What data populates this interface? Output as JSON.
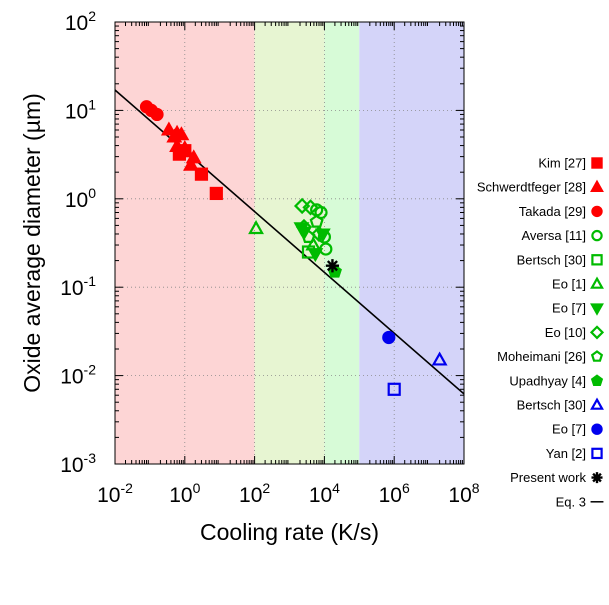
{
  "chart_data": {
    "type": "scatter",
    "xlabel": "Cooling rate (K/s)",
    "ylabel": "Oxide average diameter (µm)",
    "xscale": "log",
    "yscale": "log",
    "xlim": [
      0.01,
      100000000
    ],
    "ylim": [
      0.001,
      100
    ],
    "x_ticks": [
      {
        "base": "10",
        "exp": "-2",
        "value": 0.01
      },
      {
        "base": "10",
        "exp": "0",
        "value": 1
      },
      {
        "base": "10",
        "exp": "2",
        "value": 100
      },
      {
        "base": "10",
        "exp": "4",
        "value": 10000
      },
      {
        "base": "10",
        "exp": "6",
        "value": 1000000
      },
      {
        "base": "10",
        "exp": "8",
        "value": 100000000
      }
    ],
    "y_ticks": [
      {
        "base": "10",
        "exp": "-3",
        "value": 0.001
      },
      {
        "base": "10",
        "exp": "-2",
        "value": 0.01
      },
      {
        "base": "10",
        "exp": "-1",
        "value": 0.1
      },
      {
        "base": "10",
        "exp": "0",
        "value": 1
      },
      {
        "base": "10",
        "exp": "1",
        "value": 10
      },
      {
        "base": "10",
        "exp": "2",
        "value": 100
      }
    ],
    "grid": true,
    "legend_position": "outside-right",
    "background_bands": [
      {
        "from": 0.01,
        "to": 100,
        "color": "#fdd5d5"
      },
      {
        "from": 100,
        "to": 10000,
        "color": "#e7f5d2"
      },
      {
        "from": 10000,
        "to": 100000,
        "color": "#d7fbd7"
      },
      {
        "from": 100000,
        "to": 100000000,
        "color": "#d4d4f9"
      }
    ],
    "series": [
      {
        "name": "Kim [27]",
        "marker": "square",
        "fill": true,
        "color": "#ff0000",
        "points": [
          [
            0.7,
            3.2
          ],
          [
            1.0,
            3.5
          ],
          [
            3.0,
            1.9
          ],
          [
            8.0,
            1.15
          ]
        ]
      },
      {
        "name": "Schwerdtfeger [28]",
        "marker": "triangle",
        "fill": true,
        "color": "#ff0000",
        "points": [
          [
            0.35,
            6.0
          ],
          [
            0.5,
            5.0
          ],
          [
            0.6,
            5.5
          ],
          [
            0.8,
            5.3
          ],
          [
            0.6,
            3.9
          ],
          [
            1.0,
            3.7
          ],
          [
            1.5,
            2.4
          ],
          [
            1.8,
            2.9
          ]
        ]
      },
      {
        "name": "Takada [29]",
        "marker": "circle",
        "fill": true,
        "color": "#ff0000",
        "points": [
          [
            0.08,
            11.0
          ],
          [
            0.11,
            10.0
          ],
          [
            0.16,
            9.0
          ]
        ]
      },
      {
        "name": "Aversa [11]",
        "marker": "circle",
        "fill": false,
        "color": "#00bb00",
        "points": [
          [
            6000,
            0.75
          ],
          [
            8000,
            0.7
          ],
          [
            10000,
            0.37
          ],
          [
            11000,
            0.27
          ]
        ]
      },
      {
        "name": "Bertsch [30]",
        "marker": "square",
        "fill": false,
        "color": "#00bb00",
        "points": [
          [
            3500,
            0.25
          ]
        ]
      },
      {
        "name": "Eo [1]",
        "marker": "triangle",
        "fill": false,
        "color": "#00bb00",
        "points": [
          [
            110,
            0.46
          ],
          [
            4800,
            0.3
          ]
        ]
      },
      {
        "name": "Eo [7]",
        "marker": "triangle-down",
        "fill": true,
        "color": "#00bb00",
        "points": [
          [
            2200,
            0.47
          ],
          [
            2600,
            0.42
          ],
          [
            5500,
            0.24
          ],
          [
            9000,
            0.4
          ]
        ]
      },
      {
        "name": "Eo [10]",
        "marker": "diamond",
        "fill": false,
        "color": "#00bb00",
        "points": [
          [
            2300,
            0.83
          ],
          [
            4000,
            0.8
          ],
          [
            2600,
            0.48
          ],
          [
            7000,
            0.4
          ]
        ]
      },
      {
        "name": "Moheimani [26]",
        "marker": "pentagon",
        "fill": false,
        "color": "#00bb00",
        "points": [
          [
            6000,
            0.55
          ],
          [
            3500,
            0.37
          ]
        ]
      },
      {
        "name": "Upadhyay [4]",
        "marker": "pentagon",
        "fill": true,
        "color": "#00bb00",
        "points": [
          [
            20000,
            0.15
          ]
        ]
      },
      {
        "name": "Bertsch [30]",
        "marker": "triangle",
        "fill": false,
        "color": "#0000ee",
        "points": [
          [
            20000000,
            0.015
          ]
        ]
      },
      {
        "name": "Eo [7]",
        "marker": "circle",
        "fill": true,
        "color": "#0000ee",
        "points": [
          [
            700000,
            0.027
          ]
        ]
      },
      {
        "name": "Yan [2]",
        "marker": "square",
        "fill": false,
        "color": "#0000ee",
        "points": [
          [
            1000000,
            0.007
          ]
        ]
      },
      {
        "name": "Present work",
        "marker": "star",
        "fill": false,
        "color": "#000000",
        "points": [
          [
            17000,
            0.175
          ]
        ]
      },
      {
        "name": "Eq. 3",
        "marker": "line",
        "fill": false,
        "color": "#000000",
        "points": [
          [
            0.01,
            17.0
          ],
          [
            100000000,
            0.0062
          ]
        ]
      }
    ]
  }
}
